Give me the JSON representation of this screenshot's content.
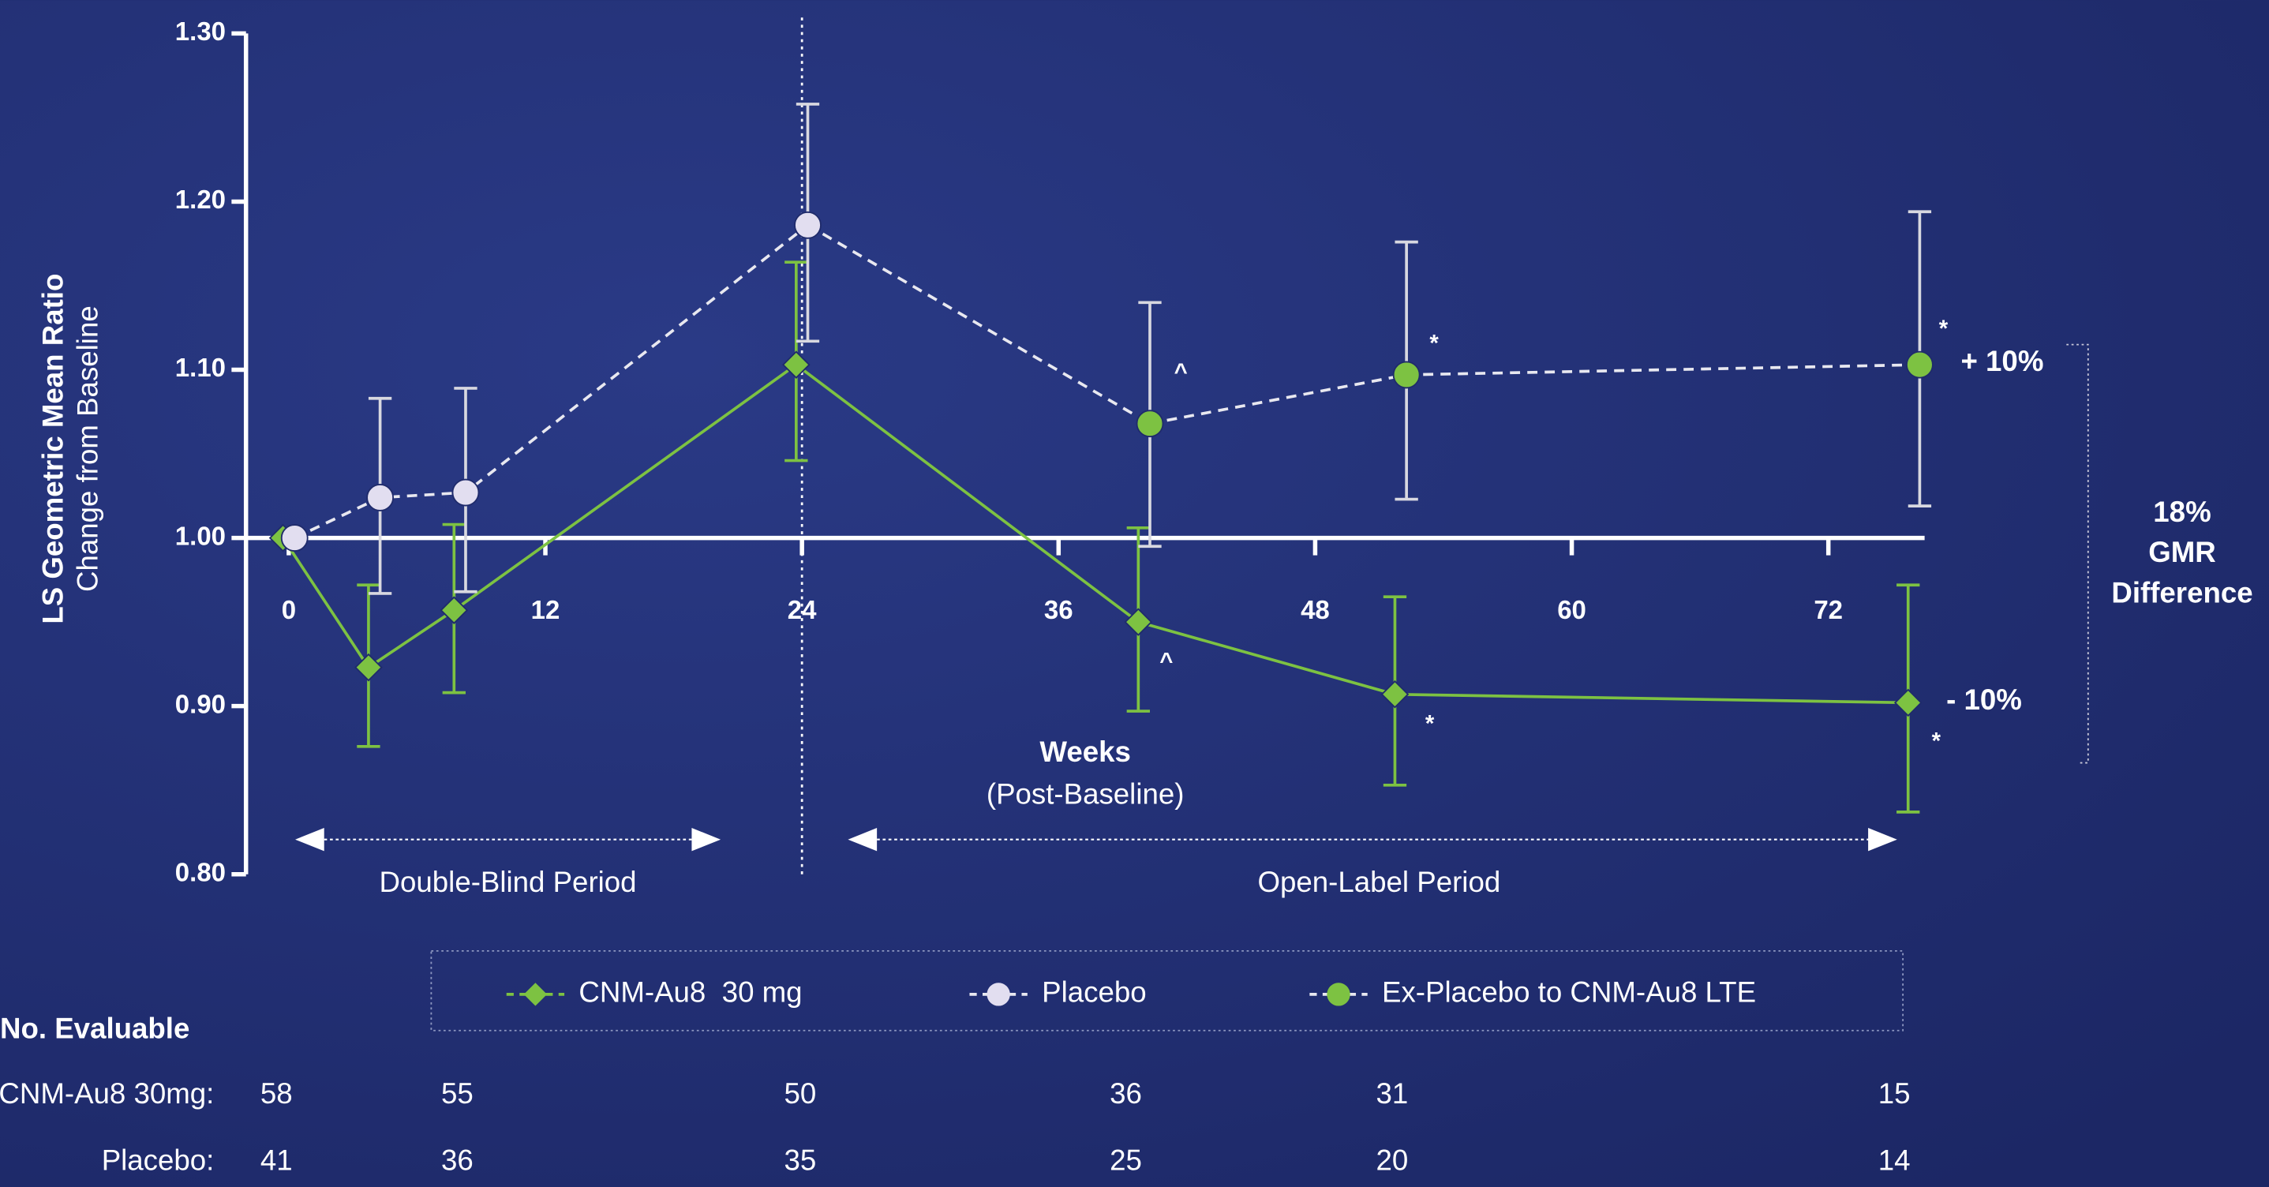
{
  "chart_data": {
    "type": "line",
    "y_label": "LS Geometric Mean Ratio",
    "y_sublabel": "Change from Baseline",
    "x_label": "Weeks",
    "x_sublabel": "(Post-Baseline)",
    "x": [
      0,
      4,
      8,
      24,
      40,
      52,
      76
    ],
    "xlim": [
      -2,
      76.5
    ],
    "xticks": [
      0,
      12,
      24,
      36,
      48,
      60,
      72
    ],
    "ylim": [
      0.8,
      1.3
    ],
    "yticks": [
      {
        "value": 0.8,
        "label": "0.80"
      },
      {
        "value": 0.9,
        "label": "0.90"
      },
      {
        "value": 1.0,
        "label": "1.00"
      },
      {
        "value": 1.1,
        "label": "1.10"
      },
      {
        "value": 1.2,
        "label": "1.20"
      },
      {
        "value": 1.3,
        "label": "1.30"
      }
    ],
    "series": [
      {
        "name": "CNM-Au8  30 mg",
        "color": "#7dc242",
        "marker": "diamond",
        "dashed": false,
        "values": [
          1.0,
          0.923,
          0.957,
          1.103,
          0.95,
          0.907,
          0.902
        ],
        "lower": [
          null,
          0.876,
          0.908,
          1.046,
          0.897,
          0.853,
          0.837
        ],
        "upper": [
          null,
          0.972,
          1.008,
          1.164,
          1.006,
          0.965,
          0.972
        ]
      },
      {
        "name": "Placebo",
        "color": "#e2def0",
        "marker": "circle",
        "dashed": true,
        "values": [
          1.0,
          1.024,
          1.027,
          1.186,
          null,
          null,
          null
        ],
        "lower": [
          null,
          0.967,
          0.968,
          1.117,
          null,
          null,
          null
        ],
        "upper": [
          null,
          1.083,
          1.089,
          1.258,
          null,
          null,
          null
        ]
      },
      {
        "name": "Ex-Placebo to CNM-Au8 LTE",
        "color": "#7dc242",
        "marker": "circle",
        "dashed": true,
        "values": [
          null,
          null,
          null,
          null,
          1.068,
          1.097,
          1.103
        ],
        "lower": [
          null,
          null,
          null,
          null,
          0.995,
          1.023,
          1.019
        ],
        "upper": [
          null,
          null,
          null,
          null,
          1.14,
          1.176,
          1.194
        ]
      }
    ],
    "periods": [
      "Double-Blind Period",
      "Open-Label Period"
    ],
    "annotations": [
      "^",
      "^",
      "*",
      "*",
      "*",
      "*"
    ],
    "end_labels": [
      "+ 10%",
      "- 10%"
    ],
    "difference_label": [
      "18%",
      "GMR",
      "Difference"
    ],
    "evaluable": {
      "title": "No. Evaluable",
      "rows": [
        {
          "label": "CNM-Au8 30mg:",
          "values": [
            58,
            55,
            50,
            36,
            31,
            15
          ]
        },
        {
          "label": "Placebo:",
          "values": [
            41,
            36,
            35,
            25,
            20,
            14
          ]
        }
      ]
    }
  }
}
